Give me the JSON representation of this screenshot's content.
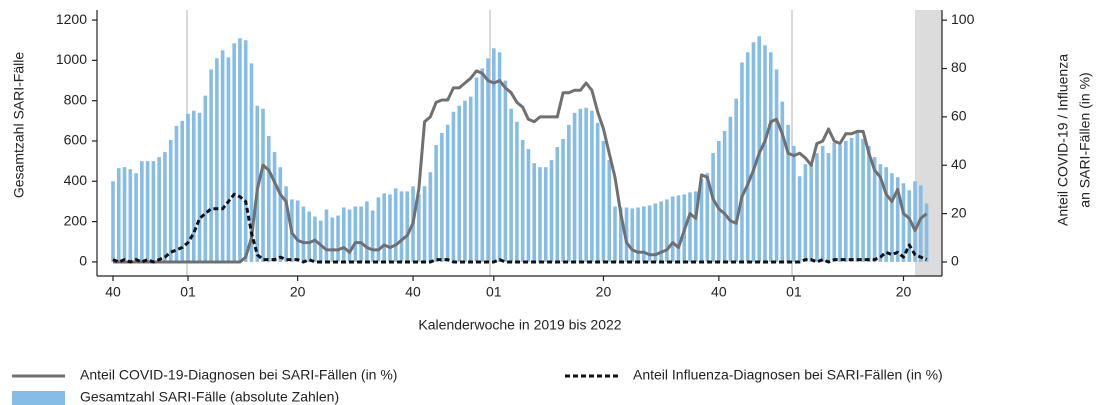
{
  "chart_data": {
    "type": "bar_line_dual",
    "x_label": "Kalenderwoche in 2019 bis 2022",
    "y_label": "Gesamtzahl SARI-Fälle",
    "y2_label": [
      "Anteil COVID-19 / Influenza",
      "an SARI-Fällen (in %)"
    ],
    "categories": [
      "40",
      null,
      null,
      null,
      null,
      null,
      null,
      null,
      null,
      null,
      null,
      null,
      null,
      "01",
      null,
      null,
      null,
      null,
      null,
      null,
      null,
      null,
      null,
      null,
      null,
      null,
      null,
      null,
      null,
      null,
      null,
      null,
      "20",
      null,
      null,
      null,
      null,
      null,
      null,
      null,
      null,
      null,
      null,
      null,
      null,
      null,
      null,
      null,
      null,
      null,
      null,
      null,
      "40",
      null,
      null,
      null,
      null,
      null,
      null,
      null,
      null,
      null,
      null,
      null,
      null,
      null,
      "01",
      null,
      null,
      null,
      null,
      null,
      null,
      null,
      null,
      null,
      null,
      null,
      null,
      null,
      null,
      null,
      null,
      null,
      null,
      "20",
      null,
      null,
      null,
      null,
      null,
      null,
      null,
      null,
      null,
      null,
      null,
      null,
      null,
      null,
      null,
      null,
      null,
      null,
      null,
      "40",
      null,
      null,
      null,
      null,
      null,
      null,
      null,
      null,
      null,
      null,
      null,
      null,
      "01",
      null,
      null,
      null,
      null,
      null,
      null,
      null,
      null,
      null,
      null,
      null,
      null,
      null,
      null,
      null,
      null,
      null,
      null,
      "20",
      null,
      null,
      null,
      null
    ],
    "ylim": [
      -70,
      1250
    ],
    "yticks": [
      0,
      200,
      400,
      600,
      800,
      1000,
      1200
    ],
    "y2lim": [
      -5.8,
      104.2
    ],
    "y2ticks": [
      0,
      20,
      40,
      60,
      80,
      100
    ],
    "series": [
      {
        "name": "Gesamtzahl SARI-Fälle (absolute Zahlen)",
        "type": "bar",
        "color": "#86bde6",
        "values": [
          400,
          465,
          470,
          460,
          440,
          500,
          500,
          500,
          520,
          545,
          605,
          675,
          700,
          735,
          750,
          740,
          825,
          955,
          1010,
          1050,
          1015,
          1085,
          1110,
          1100,
          985,
          775,
          760,
          625,
          545,
          470,
          375,
          310,
          305,
          275,
          250,
          225,
          205,
          260,
          220,
          230,
          270,
          260,
          275,
          275,
          300,
          255,
          320,
          340,
          335,
          365,
          350,
          350,
          375,
          335,
          375,
          445,
          580,
          640,
          680,
          745,
          775,
          800,
          820,
          915,
          960,
          1010,
          1060,
          1040,
          900,
          760,
          695,
          605,
          560,
          490,
          470,
          470,
          505,
          570,
          610,
          680,
          740,
          760,
          765,
          750,
          690,
          600,
          505,
          275,
          270,
          270,
          265,
          270,
          275,
          280,
          290,
          300,
          310,
          325,
          330,
          335,
          345,
          350,
          410,
          440,
          540,
          600,
          650,
          720,
          810,
          990,
          1040,
          1090,
          1120,
          1075,
          1040,
          955,
          795,
          680,
          575,
          425,
          485,
          495,
          540,
          575,
          540,
          590,
          580,
          600,
          615,
          640,
          610,
          575,
          520,
          485,
          470,
          440,
          420,
          390,
          355,
          400,
          380,
          290
        ]
      },
      {
        "name": "Anteil COVID-19-Diagnosen bei SARI-Fällen (in %)",
        "type": "line",
        "axis": "y2",
        "color": "#707070",
        "dash": false,
        "values": [
          0,
          0,
          0,
          0,
          0,
          0,
          0,
          0,
          0,
          0,
          0,
          0,
          0,
          0,
          0,
          0,
          0,
          0,
          0,
          0,
          0,
          0,
          0,
          2,
          10,
          30,
          40,
          38,
          33,
          28,
          25,
          12,
          9,
          8,
          8,
          9,
          7,
          5,
          5,
          5,
          6,
          4,
          8,
          8,
          6,
          5,
          5,
          7,
          6,
          7,
          9,
          11,
          16,
          30,
          58,
          60,
          66,
          67,
          67,
          72,
          72,
          74,
          76,
          79,
          78,
          75,
          74,
          75,
          72,
          70,
          66,
          64,
          59,
          58,
          60,
          60,
          60,
          60,
          70,
          70,
          71,
          71,
          74,
          71,
          62,
          55,
          45,
          35,
          20,
          8,
          5,
          4,
          4,
          3,
          3,
          4,
          5,
          8,
          6,
          13,
          20,
          18,
          36,
          35,
          26,
          22,
          20,
          17,
          16,
          27,
          32,
          38,
          45,
          50,
          58,
          59,
          53,
          45,
          44,
          45,
          43,
          40,
          49,
          50,
          55,
          50,
          49,
          53,
          53,
          54,
          54,
          45,
          38,
          35,
          28,
          25,
          30,
          20,
          18,
          13,
          18,
          20
        ]
      },
      {
        "name": "Anteil Influenza-Diagnosen bei SARI-Fällen (in %)",
        "type": "line",
        "axis": "y2",
        "color": "#111111",
        "dash": true,
        "values": [
          1,
          0,
          1,
          0,
          1,
          0,
          1,
          0,
          1,
          2,
          4,
          5,
          6,
          8,
          12,
          18,
          20,
          22,
          22,
          22,
          25,
          28,
          27,
          25,
          12,
          3,
          1,
          1,
          1,
          2,
          1,
          1,
          1,
          0,
          1,
          0,
          0,
          0,
          0,
          0,
          0,
          0,
          0,
          0,
          0,
          0,
          0,
          0,
          0,
          0,
          0,
          0,
          0,
          0,
          0,
          0,
          1,
          1,
          1,
          0,
          0,
          0,
          0,
          0,
          0,
          0,
          0,
          1,
          0,
          0,
          0,
          0,
          0,
          0,
          0,
          0,
          0,
          0,
          0,
          0,
          0,
          0,
          0,
          0,
          0,
          0,
          0,
          0,
          0,
          0,
          0,
          0,
          0,
          0,
          0,
          0,
          0,
          0,
          0,
          0,
          0,
          0,
          0,
          0,
          0,
          0,
          0,
          0,
          0,
          0,
          0,
          0,
          0,
          0,
          0,
          0,
          0,
          0,
          0,
          0,
          1,
          1,
          0,
          1,
          0,
          1,
          1,
          1,
          1,
          1,
          1,
          1,
          1,
          2,
          4,
          3,
          4,
          2,
          7,
          3,
          2,
          1
        ]
      }
    ]
  }
}
